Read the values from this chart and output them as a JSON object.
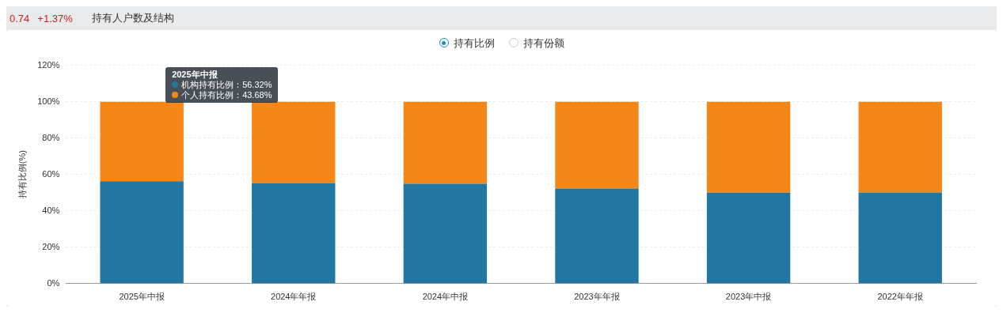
{
  "chart_data": {
    "type": "bar",
    "title": "持有人户数及结构",
    "ylabel": "持有比例(%)",
    "annotations": [
      "0.74",
      "+1.37%",
      "持有比例",
      "持有份额",
      "2025年中报",
      "机构持有比例：56.32%",
      "个人持有比例：43.68%"
    ],
    "categories": [
      "2025年中报",
      "2024年年报",
      "2024年中报",
      "2023年年报",
      "2023年中报",
      "2022年年报"
    ],
    "stacked": true,
    "series": [
      {
        "color": "#2277a2",
        "values": [
          56.32,
          55.3,
          54.9,
          52.3,
          50.0,
          50.1
        ]
      },
      {
        "color": "#f58718",
        "values": [
          43.68,
          44.7,
          45.1,
          47.7,
          50.0,
          49.9
        ]
      }
    ],
    "ylim": [
      0,
      120
    ],
    "yticks": [
      {
        "value": 0,
        "label": "0%"
      },
      {
        "value": 20,
        "label": "20%"
      },
      {
        "value": 40,
        "label": "40%"
      },
      {
        "value": 60,
        "label": "60%"
      },
      {
        "value": 80,
        "label": "80%"
      },
      {
        "value": 100,
        "label": "100%"
      },
      {
        "value": 120,
        "label": "120%"
      }
    ],
    "grid": "y",
    "legend": false
  }
}
